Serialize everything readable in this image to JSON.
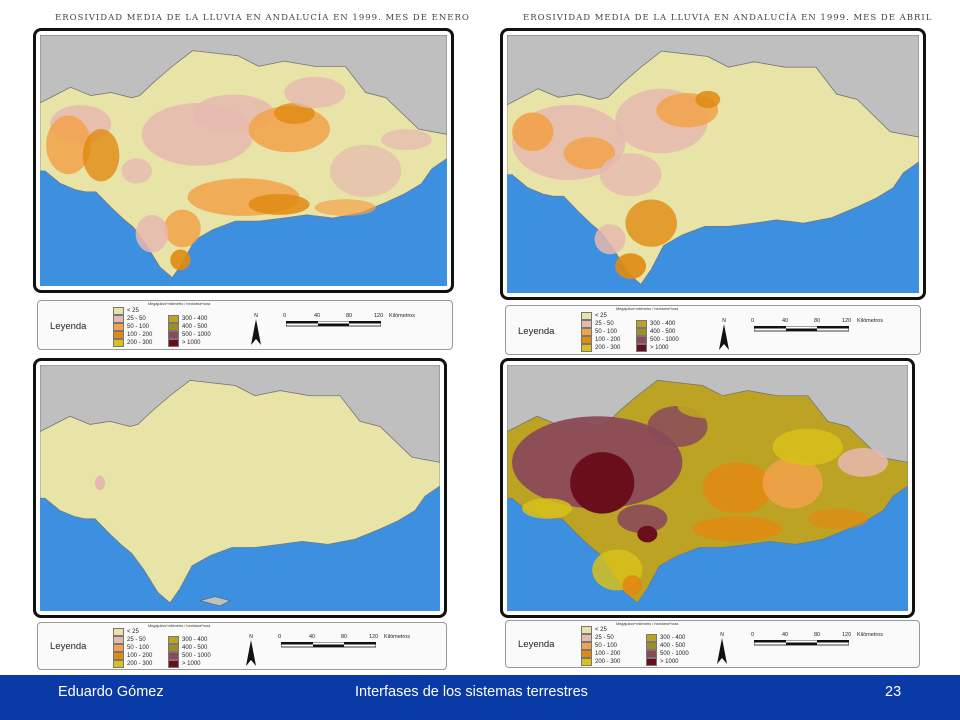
{
  "titles": {
    "january": "EROSIVIDAD MEDIA DE LA LLUVIA EN ANDALUCÍA EN 1999. MES DE ENERO",
    "april": "EROSIVIDAD MEDIA DE LA LLUVIA EN ANDALUCÍA EN 1999. MES DE ABRIL"
  },
  "colors": {
    "sea": "#3d8fe0",
    "land_outside": "#bfbfbf",
    "class_colors": [
      "#e8e3a6",
      "#e6b9b0",
      "#f2a24a",
      "#e08a12",
      "#d7c11a",
      "#bda324",
      "#9c8f2a",
      "#8a4a5a",
      "#6a0e1c"
    ]
  },
  "legend": {
    "title": "Leyenda",
    "unit": "Megajulios*milímetro / hectárea*hora",
    "classes": [
      "< 25",
      "25 - 50",
      "50 - 100",
      "100 - 200",
      "200 - 300",
      "300 - 400",
      "400 - 500",
      "500 - 1000",
      "> 1000"
    ]
  },
  "north_letter": "N",
  "scale": {
    "ticks": [
      "0",
      "40",
      "80",
      "120"
    ],
    "unit": "Kilómetros"
  },
  "footer": {
    "author": "Eduardo Gómez",
    "course": "Interfases de los sistemas terrestres",
    "page": "23"
  }
}
